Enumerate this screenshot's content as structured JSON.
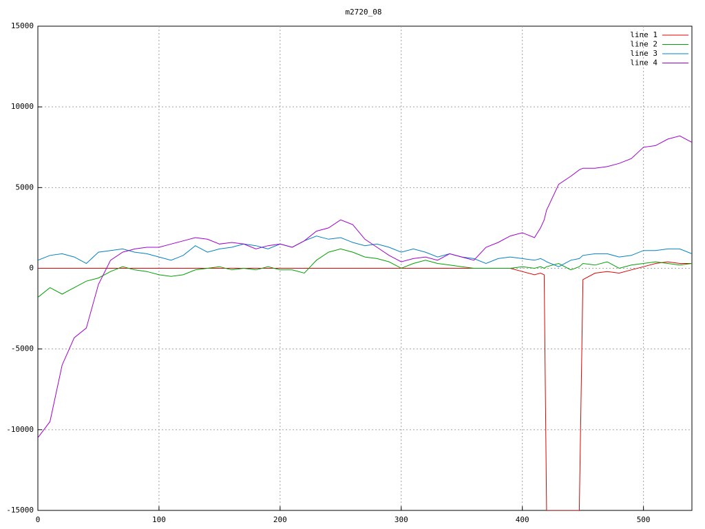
{
  "chart_data": {
    "type": "line",
    "title": "m2720_08",
    "x": [
      0,
      10,
      20,
      30,
      40,
      50,
      60,
      70,
      80,
      90,
      100,
      110,
      120,
      130,
      140,
      150,
      160,
      170,
      180,
      190,
      200,
      210,
      220,
      230,
      240,
      250,
      260,
      270,
      280,
      290,
      300,
      310,
      320,
      330,
      340,
      350,
      360,
      370,
      380,
      390,
      400,
      410,
      415,
      418,
      420,
      430,
      440,
      447,
      450,
      460,
      470,
      480,
      490,
      500,
      510,
      520,
      530,
      540
    ],
    "series": [
      {
        "name": "line 1",
        "color": "#e00000",
        "values": [
          0,
          0,
          0,
          0,
          0,
          0,
          0,
          0,
          0,
          0,
          0,
          0,
          0,
          0,
          0,
          0,
          0,
          0,
          0,
          0,
          0,
          0,
          0,
          0,
          0,
          0,
          0,
          0,
          0,
          0,
          0,
          0,
          0,
          0,
          0,
          0,
          0,
          0,
          0,
          0,
          -200,
          -400,
          -300,
          -400,
          -15000,
          -15000,
          -15000,
          -15000,
          -700,
          -300,
          -200,
          -300,
          -100,
          100,
          300,
          400,
          300,
          300
        ]
      },
      {
        "name": "line 2",
        "color": "#00a000",
        "values": [
          -1800,
          -1200,
          -1600,
          -1200,
          -800,
          -600,
          -200,
          100,
          -100,
          -200,
          -400,
          -500,
          -400,
          -100,
          0,
          100,
          -100,
          0,
          -100,
          100,
          -100,
          -100,
          -300,
          500,
          1000,
          1200,
          1000,
          700,
          600,
          400,
          0,
          300,
          500,
          300,
          200,
          100,
          0,
          0,
          0,
          0,
          100,
          0,
          100,
          0,
          100,
          300,
          -100,
          100,
          300,
          200,
          400,
          0,
          200,
          300,
          400,
          300,
          200,
          300
        ]
      },
      {
        "name": "line 3",
        "color": "#0080c0",
        "values": [
          500,
          800,
          900,
          700,
          300,
          1000,
          1100,
          1200,
          1000,
          900,
          700,
          500,
          800,
          1400,
          1000,
          1200,
          1300,
          1500,
          1400,
          1200,
          1500,
          1300,
          1700,
          2000,
          1800,
          1900,
          1600,
          1400,
          1500,
          1300,
          1000,
          1200,
          1000,
          700,
          900,
          700,
          600,
          300,
          600,
          700,
          600,
          500,
          600,
          500,
          400,
          100,
          500,
          600,
          800,
          900,
          900,
          700,
          800,
          1100,
          1100,
          1200,
          1200,
          900
        ]
      },
      {
        "name": "line 4",
        "color": "#a000d0",
        "values": [
          -10500,
          -9500,
          -6000,
          -4300,
          -3700,
          -1000,
          500,
          1000,
          1200,
          1300,
          1300,
          1500,
          1700,
          1900,
          1800,
          1500,
          1600,
          1500,
          1200,
          1400,
          1500,
          1300,
          1700,
          2300,
          2500,
          3000,
          2700,
          1800,
          1300,
          800,
          400,
          600,
          700,
          500,
          900,
          700,
          500,
          1300,
          1600,
          2000,
          2200,
          1900,
          2500,
          3000,
          3600,
          5200,
          5700,
          6100,
          6200,
          6200,
          6300,
          6500,
          6800,
          7500,
          7600,
          8000,
          8200,
          7800
        ]
      }
    ],
    "xlim": [
      0,
      540
    ],
    "xticks": [
      0,
      100,
      200,
      300,
      400,
      500
    ],
    "ylim": [
      -15000,
      15000
    ],
    "yticks": [
      -15000,
      -10000,
      -5000,
      0,
      5000,
      10000,
      15000
    ],
    "grid": true,
    "legend": "top-right"
  }
}
